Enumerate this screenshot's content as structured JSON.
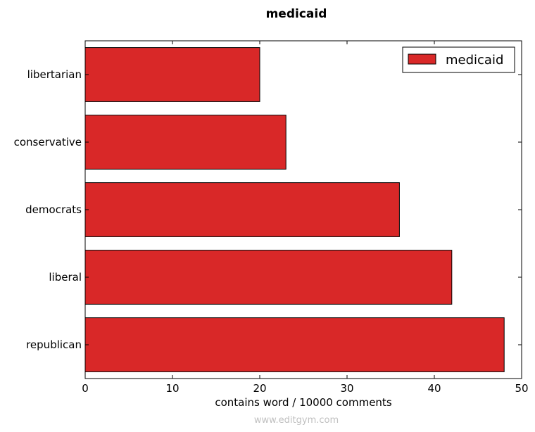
{
  "chart_data": {
    "type": "bar",
    "orientation": "horizontal",
    "title": "medicaid",
    "xlabel": "contains word / 10000 comments",
    "ylabel": "",
    "categories": [
      "libertarian",
      "conservative",
      "democrats",
      "liberal",
      "republican"
    ],
    "series": [
      {
        "name": "medicaid",
        "values": [
          20,
          23,
          36,
          42,
          48
        ],
        "color": "#d92828"
      }
    ],
    "xlim": [
      0,
      50
    ],
    "xticks": [
      0,
      10,
      20,
      30,
      40,
      50
    ],
    "grid": false,
    "legend": "top-right"
  },
  "watermark": "www.editgym.com"
}
